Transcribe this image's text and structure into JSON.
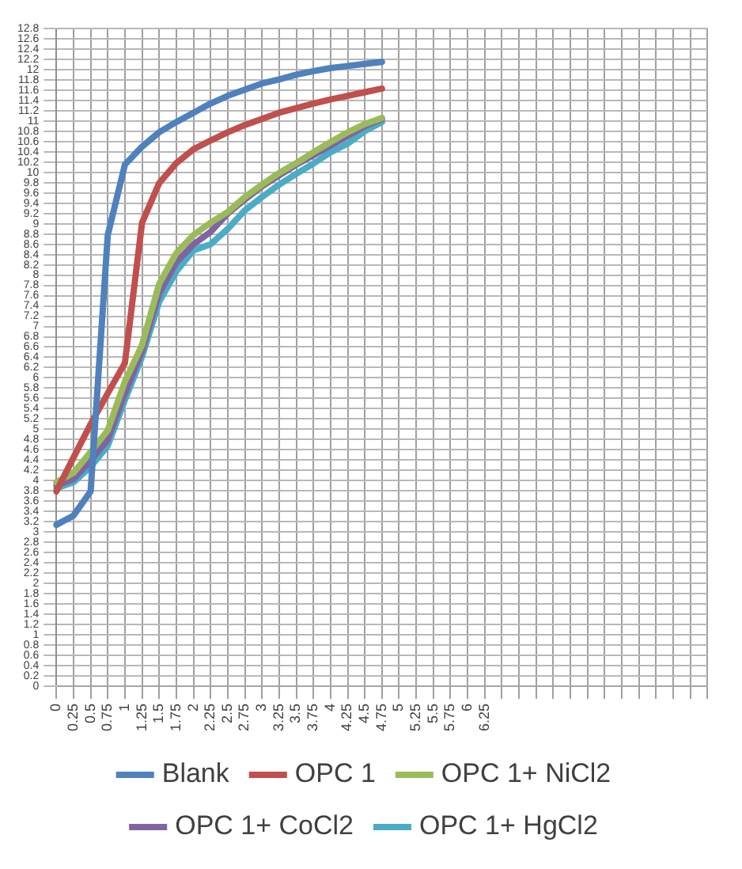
{
  "chart_data": {
    "type": "line",
    "categories": [
      "0",
      "0.25",
      "0.5",
      "0.75",
      "1",
      "1.25",
      "1.5",
      "1.75",
      "2",
      "2.25",
      "2.5",
      "2.75",
      "3",
      "3.25",
      "3.5",
      "3.75",
      "4",
      "4.25",
      "4.5",
      "4.75",
      "5",
      "5.25",
      "5.5",
      "5.75",
      "6",
      "6.25",
      null,
      null,
      null,
      null,
      null,
      null,
      null,
      null,
      null,
      null,
      null,
      null,
      null
    ],
    "series": [
      {
        "name": "Blank",
        "color": "#4f81bd",
        "values": [
          3.14,
          3.32,
          3.79,
          8.78,
          10.15,
          10.5,
          10.78,
          10.98,
          11.16,
          11.34,
          11.49,
          11.61,
          11.73,
          11.81,
          11.9,
          11.97,
          12.03,
          12.07,
          12.11,
          12.15,
          null,
          null,
          null,
          null,
          null,
          null,
          null,
          null,
          null,
          null,
          null,
          null,
          null,
          null,
          null,
          null,
          null,
          null,
          null
        ]
      },
      {
        "name": "OPC 1",
        "color": "#c0504d",
        "values": [
          3.79,
          4.45,
          5.1,
          5.7,
          6.29,
          9.02,
          9.79,
          10.18,
          10.45,
          10.62,
          10.78,
          10.92,
          11.04,
          11.16,
          11.25,
          11.34,
          11.42,
          11.49,
          11.56,
          11.63,
          null,
          null,
          null,
          null,
          null,
          null,
          null,
          null,
          null,
          null,
          null,
          null,
          null,
          null,
          null,
          null,
          null,
          null,
          null
        ]
      },
      {
        "name": "OPC 1+ NiCl2",
        "color": "#9bbb59",
        "values": [
          3.97,
          4.15,
          4.56,
          4.98,
          5.93,
          6.64,
          7.83,
          8.43,
          8.78,
          9.02,
          9.23,
          9.52,
          9.76,
          9.99,
          10.18,
          10.39,
          10.59,
          10.78,
          10.94,
          11.06,
          null,
          null,
          null,
          null,
          null,
          null,
          null,
          null,
          null,
          null,
          null,
          null,
          null,
          null,
          null,
          null,
          null,
          null,
          null
        ]
      },
      {
        "name": "OPC 1+ CoCl2",
        "color": "#8064a2",
        "values": [
          3.91,
          4.03,
          4.39,
          4.8,
          5.7,
          6.52,
          7.65,
          8.25,
          8.6,
          8.84,
          9.2,
          9.47,
          9.73,
          9.94,
          10.15,
          10.33,
          10.52,
          10.71,
          10.9,
          11.04,
          null,
          null,
          null,
          null,
          null,
          null,
          null,
          null,
          null,
          null,
          null,
          null,
          null,
          null,
          null,
          null,
          null,
          null,
          null
        ]
      },
      {
        "name": "OPC 1+ HgCl2",
        "color": "#4bacc6",
        "values": [
          3.85,
          3.97,
          4.27,
          4.68,
          5.57,
          6.41,
          7.48,
          8.07,
          8.48,
          8.6,
          8.9,
          9.26,
          9.52,
          9.76,
          9.97,
          10.17,
          10.39,
          10.56,
          10.8,
          10.98,
          null,
          null,
          null,
          null,
          null,
          null,
          null,
          null,
          null,
          null,
          null,
          null,
          null,
          null,
          null,
          null,
          null,
          null,
          null
        ]
      }
    ],
    "ylim": [
      0,
      12.8
    ],
    "yticks": [
      0,
      0.2,
      0.4,
      0.6,
      0.8,
      1,
      1.2,
      1.4,
      1.6,
      1.8,
      2,
      2.2,
      2.4,
      2.6,
      2.8,
      3,
      3.2,
      3.4,
      3.6,
      3.8,
      4,
      4.2,
      4.4,
      4.6,
      4.8,
      5,
      5.2,
      5.4,
      5.6,
      5.8,
      6,
      6.2,
      6.4,
      6.6,
      6.8,
      7,
      7.2,
      7.4,
      7.6,
      7.8,
      8,
      8.2,
      8.4,
      8.6,
      8.8,
      9,
      9.2,
      9.4,
      9.6,
      9.8,
      10,
      10.2,
      10.4,
      10.6,
      10.8,
      11,
      11.2,
      11.4,
      11.6,
      11.8,
      12,
      12.2,
      12.4,
      12.6,
      12.8
    ],
    "grid": true,
    "legend": "bottom",
    "marker": "none",
    "line_style": "solid"
  }
}
